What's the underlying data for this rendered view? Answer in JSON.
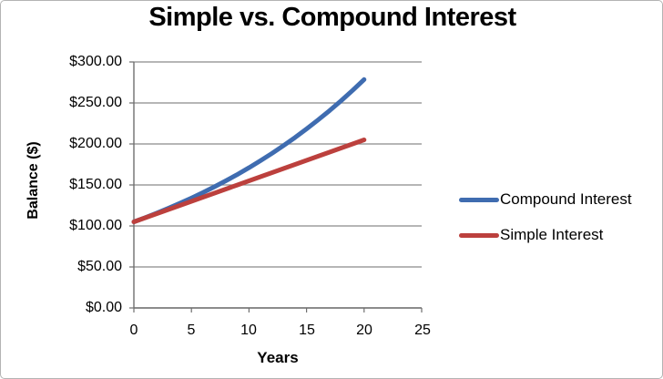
{
  "colors": {
    "background": "#ffffff",
    "chart_border": "#b3b3b3",
    "gridline": "#8a8a8a",
    "axis": "#6f6f6f",
    "text": "#000000"
  },
  "chart_data": {
    "type": "line",
    "title": "Simple vs. Compound Interest",
    "xlabel": "Years",
    "ylabel": "Balance ($)",
    "xlim": [
      0,
      25
    ],
    "ylim": [
      0,
      300
    ],
    "grid": true,
    "legend_position": "right",
    "x_ticks": [
      0,
      5,
      10,
      15,
      20,
      25
    ],
    "x_tick_labels": [
      "0",
      "5",
      "10",
      "15",
      "20",
      "25"
    ],
    "y_ticks": [
      0,
      50,
      100,
      150,
      200,
      250,
      300
    ],
    "y_tick_labels": [
      "$0.00",
      "$50.00",
      "$100.00",
      "$150.00",
      "$200.00",
      "$250.00",
      "$300.00"
    ],
    "series": [
      {
        "name": "Compound Interest",
        "color": "#3f6cb0",
        "x": [
          0,
          1,
          2,
          3,
          4,
          5,
          6,
          7,
          8,
          9,
          10,
          11,
          12,
          13,
          14,
          15,
          16,
          17,
          18,
          19,
          20
        ],
        "values": [
          105,
          110.25,
          115.76,
          121.55,
          127.63,
          134.01,
          140.71,
          147.75,
          155.13,
          162.89,
          171.03,
          179.59,
          188.56,
          197.99,
          207.89,
          218.29,
          229.2,
          240.66,
          252.7,
          265.33,
          278.6
        ]
      },
      {
        "name": "Simple Interest",
        "color": "#bc403d",
        "x": [
          0,
          1,
          2,
          3,
          4,
          5,
          6,
          7,
          8,
          9,
          10,
          11,
          12,
          13,
          14,
          15,
          16,
          17,
          18,
          19,
          20
        ],
        "values": [
          105,
          110,
          115,
          120,
          125,
          130,
          135,
          140,
          145,
          150,
          155,
          160,
          165,
          170,
          175,
          180,
          185,
          190,
          195,
          200,
          205
        ]
      }
    ]
  }
}
